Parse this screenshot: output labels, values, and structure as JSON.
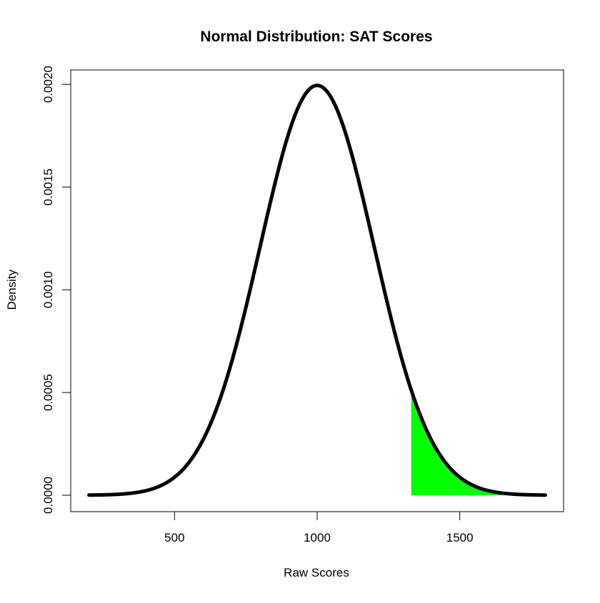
{
  "chart_data": {
    "type": "line",
    "title": "Normal Distribution: SAT Scores",
    "xlabel": "Raw Scores",
    "ylabel": "Density",
    "distribution": {
      "family": "normal",
      "mean": 1000,
      "sd": 200
    },
    "x_range": [
      200,
      1800
    ],
    "xlim": [
      136,
      1864
    ],
    "ylim": [
      -8e-05,
      0.00207
    ],
    "x_ticks": [
      500,
      1000,
      1500
    ],
    "x_tick_labels": [
      "500",
      "1000",
      "1500"
    ],
    "y_ticks": [
      0,
      0.0005,
      0.001,
      0.0015,
      0.002
    ],
    "y_tick_labels": [
      "0.0000",
      "0.0005",
      "0.0010",
      "0.0015",
      "0.0020"
    ],
    "shaded_region": {
      "from": 1330,
      "to": 1800,
      "color": "#00ff00"
    },
    "line_color": "#000000",
    "grid": false,
    "legend": "none"
  }
}
